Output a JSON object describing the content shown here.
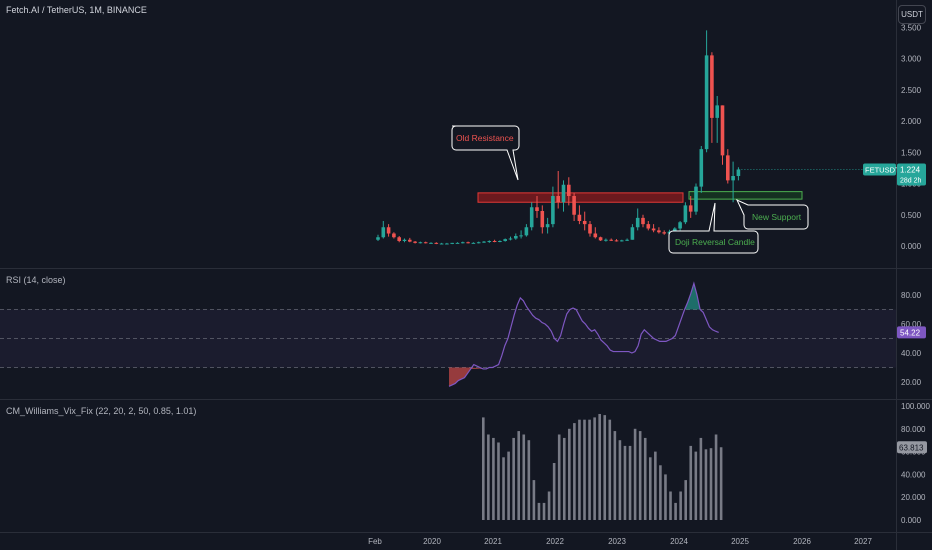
{
  "header": {
    "title": "Fetch.AI / TetherUS, 1M, BINANCE",
    "currency": "USDT"
  },
  "x_axis": {
    "ticks": [
      "Feb",
      "2020",
      "2021",
      "2022",
      "2023",
      "2024",
      "2025",
      "2026",
      "2027"
    ]
  },
  "price_panel": {
    "y_ticks": [
      "3.500",
      "3.000",
      "2.500",
      "2.000",
      "1.500",
      "1.000",
      "0.500",
      "0.000"
    ],
    "last_price": {
      "symbol": "FETUSDT",
      "value": "1.224",
      "countdown": "28d 2h"
    },
    "annotations": {
      "old_resistance": "Old Resistance",
      "new_support": "New Support",
      "doji": "Doji Reversal Candle"
    },
    "colors": {
      "up": "#26a69a",
      "down": "#ef5350",
      "resistance_zone": "#b71c1c",
      "support_zone": "#4caf50"
    }
  },
  "rsi_panel": {
    "label": "RSI (14, close)",
    "y_ticks": [
      "80.00",
      "60.00",
      "40.00",
      "20.00"
    ],
    "current_value": "54.22",
    "line_color": "#7e57c2",
    "overbought": 70,
    "middle": 50,
    "oversold": 30
  },
  "vix_panel": {
    "label": "CM_Williams_Vix_Fix (22, 20, 2, 50, 0.85, 1.01)",
    "y_ticks": [
      "100.000",
      "80.000",
      "60.000",
      "40.000",
      "20.000",
      "0.000"
    ],
    "current_value": "63.813",
    "bar_color": "#787b86"
  },
  "chart_data": [
    {
      "type": "candlestick",
      "title": "Fetch.AI / TetherUS, 1M, BINANCE",
      "x_ticks": [
        "Feb",
        "2020",
        "2021",
        "2022",
        "2023",
        "2024",
        "2025",
        "2026",
        "2027"
      ],
      "ylim": [
        0,
        3.5
      ],
      "grid": false,
      "ohlc": [
        [
          0.1,
          0.18,
          0.08,
          0.14
        ],
        [
          0.14,
          0.4,
          0.12,
          0.3
        ],
        [
          0.3,
          0.35,
          0.15,
          0.2
        ],
        [
          0.2,
          0.22,
          0.12,
          0.14
        ],
        [
          0.14,
          0.16,
          0.06,
          0.08
        ],
        [
          0.08,
          0.12,
          0.06,
          0.1
        ],
        [
          0.1,
          0.13,
          0.06,
          0.07
        ],
        [
          0.07,
          0.08,
          0.04,
          0.05
        ],
        [
          0.05,
          0.07,
          0.04,
          0.06
        ],
        [
          0.06,
          0.07,
          0.04,
          0.05
        ],
        [
          0.05,
          0.06,
          0.04,
          0.05
        ],
        [
          0.05,
          0.06,
          0.03,
          0.04
        ],
        [
          0.04,
          0.05,
          0.03,
          0.04
        ],
        [
          0.04,
          0.05,
          0.03,
          0.04
        ],
        [
          0.04,
          0.05,
          0.03,
          0.05
        ],
        [
          0.05,
          0.06,
          0.04,
          0.05
        ],
        [
          0.05,
          0.07,
          0.04,
          0.06
        ],
        [
          0.06,
          0.07,
          0.04,
          0.05
        ],
        [
          0.05,
          0.06,
          0.04,
          0.05
        ],
        [
          0.05,
          0.07,
          0.04,
          0.06
        ],
        [
          0.06,
          0.08,
          0.05,
          0.07
        ],
        [
          0.07,
          0.09,
          0.05,
          0.08
        ],
        [
          0.08,
          0.1,
          0.06,
          0.07
        ],
        [
          0.07,
          0.09,
          0.06,
          0.08
        ],
        [
          0.08,
          0.12,
          0.07,
          0.11
        ],
        [
          0.11,
          0.15,
          0.09,
          0.12
        ],
        [
          0.12,
          0.2,
          0.1,
          0.16
        ],
        [
          0.16,
          0.25,
          0.12,
          0.17
        ],
        [
          0.17,
          0.35,
          0.15,
          0.3
        ],
        [
          0.3,
          0.7,
          0.25,
          0.62
        ],
        [
          0.62,
          0.8,
          0.45,
          0.56
        ],
        [
          0.56,
          0.65,
          0.2,
          0.3
        ],
        [
          0.3,
          0.45,
          0.2,
          0.35
        ],
        [
          0.35,
          0.95,
          0.3,
          0.8
        ],
        [
          0.8,
          1.2,
          0.6,
          0.7
        ],
        [
          0.7,
          1.05,
          0.55,
          0.98
        ],
        [
          0.98,
          1.1,
          0.65,
          0.8
        ],
        [
          0.8,
          0.85,
          0.4,
          0.5
        ],
        [
          0.5,
          0.65,
          0.35,
          0.4
        ],
        [
          0.4,
          0.55,
          0.25,
          0.35
        ],
        [
          0.35,
          0.4,
          0.15,
          0.2
        ],
        [
          0.2,
          0.3,
          0.12,
          0.14
        ],
        [
          0.14,
          0.15,
          0.08,
          0.09
        ],
        [
          0.09,
          0.12,
          0.07,
          0.1
        ],
        [
          0.1,
          0.12,
          0.08,
          0.09
        ],
        [
          0.09,
          0.11,
          0.07,
          0.08
        ],
        [
          0.08,
          0.1,
          0.07,
          0.09
        ],
        [
          0.09,
          0.12,
          0.08,
          0.1
        ],
        [
          0.1,
          0.35,
          0.1,
          0.3
        ],
        [
          0.3,
          0.6,
          0.25,
          0.45
        ],
        [
          0.45,
          0.5,
          0.3,
          0.35
        ],
        [
          0.35,
          0.4,
          0.25,
          0.28
        ],
        [
          0.28,
          0.35,
          0.22,
          0.25
        ],
        [
          0.25,
          0.3,
          0.2,
          0.22
        ],
        [
          0.22,
          0.25,
          0.18,
          0.2
        ],
        [
          0.2,
          0.26,
          0.17,
          0.23
        ],
        [
          0.23,
          0.3,
          0.2,
          0.28
        ],
        [
          0.28,
          0.4,
          0.25,
          0.38
        ],
        [
          0.38,
          0.7,
          0.35,
          0.65
        ],
        [
          0.65,
          0.8,
          0.45,
          0.55
        ],
        [
          0.55,
          1.0,
          0.5,
          0.95
        ],
        [
          0.95,
          1.6,
          0.85,
          1.55
        ],
        [
          1.55,
          3.45,
          1.5,
          3.05
        ],
        [
          3.05,
          3.1,
          1.65,
          2.05
        ],
        [
          2.05,
          2.4,
          1.65,
          2.25
        ],
        [
          2.25,
          2.25,
          1.3,
          1.45
        ],
        [
          1.45,
          1.55,
          1.0,
          1.05
        ],
        [
          1.05,
          1.35,
          0.7,
          1.12
        ],
        [
          1.12,
          1.26,
          1.05,
          1.224
        ]
      ],
      "resistance_zone": [
        0.7,
        0.85
      ],
      "support_zone": [
        0.75,
        0.87
      ]
    },
    {
      "type": "line",
      "title": "RSI (14, close)",
      "ylim": [
        10,
        95
      ],
      "levels": [
        70,
        50,
        30
      ],
      "values": [
        17,
        18,
        19,
        21,
        22,
        23,
        26,
        29,
        32,
        31,
        30,
        29,
        29,
        30,
        30,
        31,
        32,
        38,
        45,
        50,
        58,
        66,
        73,
        78,
        76,
        72,
        69,
        66,
        64,
        63,
        61,
        60,
        58,
        55,
        50,
        48,
        52,
        60,
        67,
        70,
        71,
        70,
        66,
        62,
        60,
        57,
        55,
        56,
        53,
        49,
        47,
        45,
        42,
        41,
        41,
        41,
        41,
        41,
        41,
        40,
        41,
        45,
        53,
        56,
        54,
        52,
        50,
        49,
        48,
        48,
        48,
        49,
        50,
        52,
        58,
        64,
        70,
        75,
        81,
        88,
        80,
        70,
        68,
        63,
        58,
        56,
        55,
        54.22
      ]
    },
    {
      "type": "bar",
      "title": "CM_Williams_Vix_Fix (22, 20, 2, 50, 0.85, 1.01)",
      "ylim": [
        0,
        100
      ],
      "values": [
        90,
        75,
        72,
        68,
        55,
        60,
        72,
        78,
        75,
        70,
        35,
        15,
        15,
        25,
        50,
        75,
        72,
        80,
        85,
        88,
        88,
        88,
        90,
        93,
        92,
        88,
        78,
        70,
        65,
        65,
        80,
        78,
        72,
        55,
        60,
        48,
        40,
        25,
        15,
        25,
        35,
        65,
        60,
        72,
        62,
        63,
        75,
        63.813
      ]
    }
  ]
}
